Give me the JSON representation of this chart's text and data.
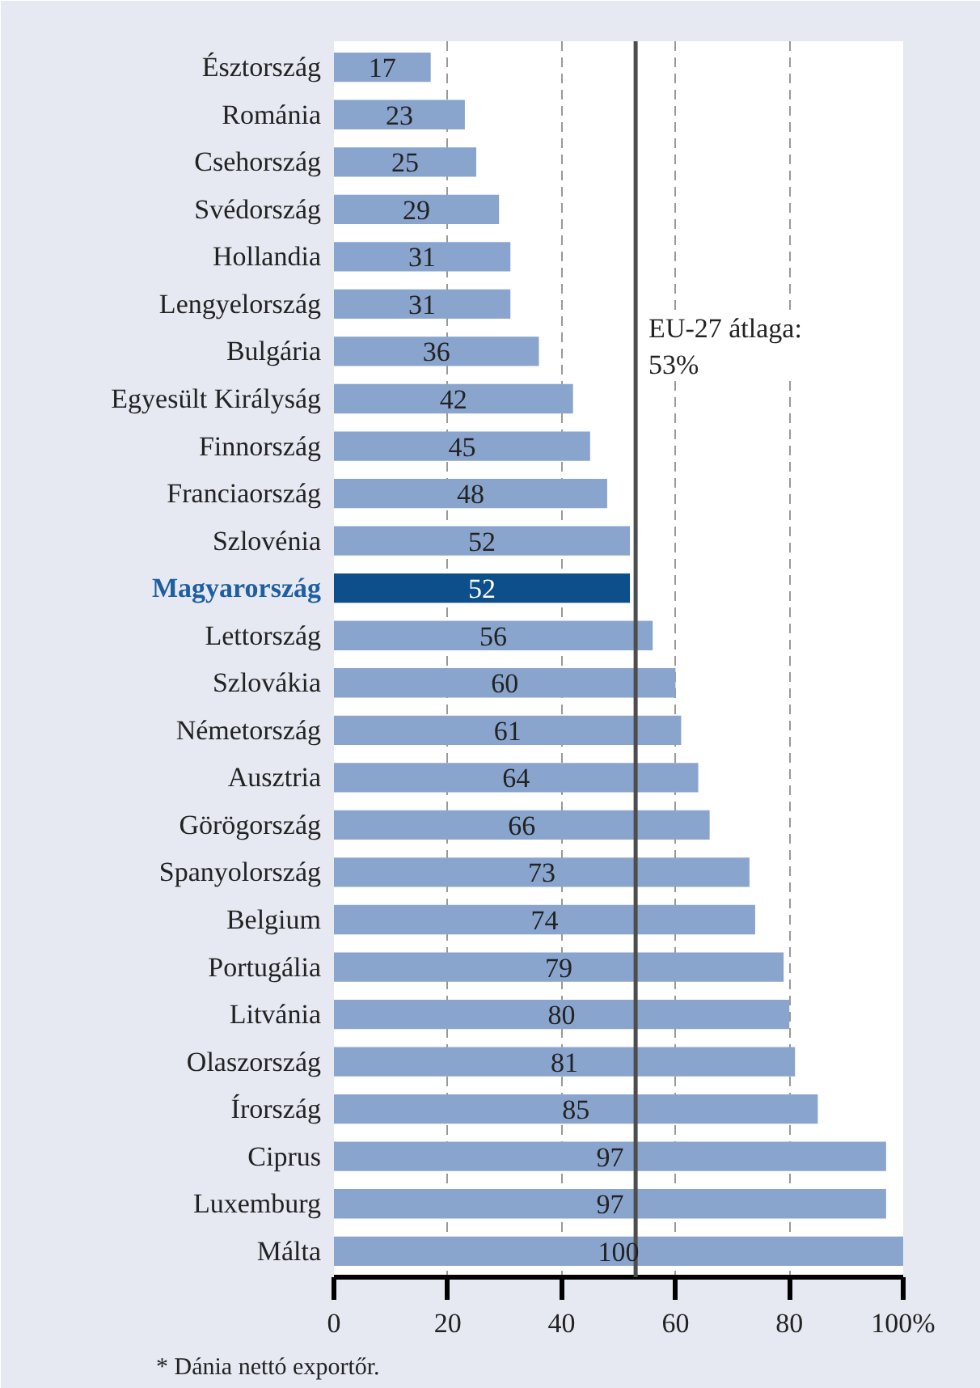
{
  "chart_data": {
    "type": "bar",
    "orientation": "horizontal",
    "categories": [
      "Észtország",
      "Románia",
      "Csehország",
      "Svédország",
      "Hollandia",
      "Lengyelország",
      "Bulgária",
      "Egyesült Királyság",
      "Finnország",
      "Franciaország",
      "Szlovénia",
      "Magyarország",
      "Lettország",
      "Szlovákia",
      "Németország",
      "Ausztria",
      "Görögország",
      "Spanyolország",
      "Belgium",
      "Portugália",
      "Litvánia",
      "Olaszország",
      "Írország",
      "Ciprus",
      "Luxemburg",
      "Málta"
    ],
    "values": [
      17,
      23,
      25,
      29,
      31,
      31,
      36,
      42,
      45,
      48,
      52,
      52,
      56,
      60,
      61,
      64,
      66,
      73,
      74,
      79,
      80,
      81,
      85,
      97,
      97,
      100
    ],
    "colors": [
      "#8aa5cd",
      "#8aa5cd",
      "#8aa5cd",
      "#8aa5cd",
      "#8aa5cd",
      "#8aa5cd",
      "#8aa5cd",
      "#8aa5cd",
      "#8aa5cd",
      "#8aa5cd",
      "#8aa5cd",
      "#0d4f8b",
      "#8aa5cd",
      "#8aa5cd",
      "#8aa5cd",
      "#8aa5cd",
      "#8aa5cd",
      "#8aa5cd",
      "#8aa5cd",
      "#8aa5cd",
      "#8aa5cd",
      "#8aa5cd",
      "#8aa5cd",
      "#8aa5cd",
      "#8aa5cd",
      "#8aa5cd"
    ],
    "data_labels": true,
    "xlim": [
      0,
      100
    ],
    "xticks": [
      0,
      20,
      40,
      60,
      80,
      {
        "value": 100,
        "label": "100%"
      }
    ],
    "grid": "x",
    "ref_lines": [
      {
        "axis": "x",
        "value": 53,
        "label": "EU-27 átlaga:\n53%",
        "color": "#4d4d4d"
      }
    ],
    "annotations": [
      "* Dánia nettó exportőr."
    ]
  }
}
